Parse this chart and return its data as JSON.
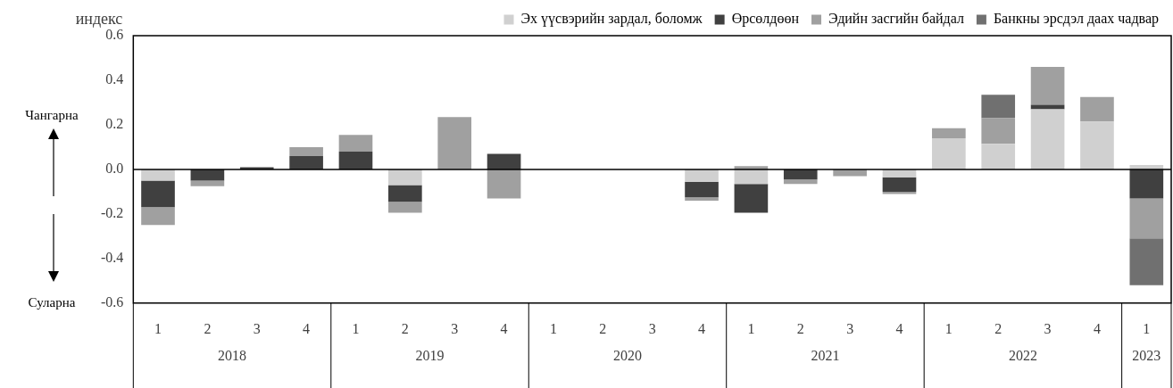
{
  "chart_data": {
    "type": "bar",
    "stacked": true,
    "ylabel": "индекс",
    "categories": [
      "1",
      "2",
      "3",
      "4",
      "1",
      "2",
      "3",
      "4",
      "1",
      "2",
      "3",
      "4",
      "1",
      "2",
      "3",
      "4",
      "1",
      "2",
      "3",
      "4",
      "1"
    ],
    "series": [
      {
        "name": "Эх үүсвэрийн зардал, боломж",
        "color": "#d0d0d0",
        "values": [
          -0.05,
          null,
          null,
          null,
          null,
          -0.07,
          null,
          null,
          null,
          null,
          null,
          -0.055,
          -0.065,
          null,
          null,
          -0.035,
          0.14,
          0.115,
          0.27,
          0.215,
          0.02
        ]
      },
      {
        "name": "Өрсөлдөөн",
        "color": "#404040",
        "values": [
          -0.12,
          -0.05,
          0.01,
          0.06,
          0.08,
          -0.075,
          null,
          0.07,
          null,
          null,
          null,
          -0.07,
          -0.13,
          -0.045,
          null,
          -0.065,
          null,
          null,
          0.02,
          null,
          -0.13
        ]
      },
      {
        "name": "Эдийн засгийн байдал",
        "color": "#a0a0a0",
        "values": [
          -0.08,
          -0.025,
          null,
          0.04,
          0.075,
          -0.05,
          0.235,
          -0.13,
          null,
          null,
          null,
          -0.015,
          0.015,
          -0.02,
          -0.03,
          -0.01,
          0.045,
          0.115,
          0.17,
          0.11,
          -0.18
        ]
      },
      {
        "name": "Банкны эрсдэл даах чадвар",
        "color": "#707070",
        "values": [
          null,
          null,
          null,
          null,
          null,
          null,
          null,
          null,
          null,
          null,
          null,
          null,
          null,
          null,
          null,
          null,
          null,
          0.105,
          null,
          null,
          -0.21
        ]
      }
    ],
    "ylim": [
      -0.6,
      0.6
    ],
    "yticks": [
      {
        "value": -0.6,
        "label": "-0.6"
      },
      {
        "value": -0.4,
        "label": "-0.4"
      },
      {
        "value": -0.2,
        "label": "-0.2"
      },
      {
        "value": 0,
        "label": "0.0"
      },
      {
        "value": 0.2,
        "label": "0.2"
      },
      {
        "value": 0.4,
        "label": "0.4"
      },
      {
        "value": 0.6,
        "label": "0.6"
      }
    ],
    "legend": "top",
    "annotations": [
      "2018",
      "2019",
      "2020",
      "2021",
      "2022",
      "2023",
      "Чангарна",
      "Суларна"
    ]
  }
}
